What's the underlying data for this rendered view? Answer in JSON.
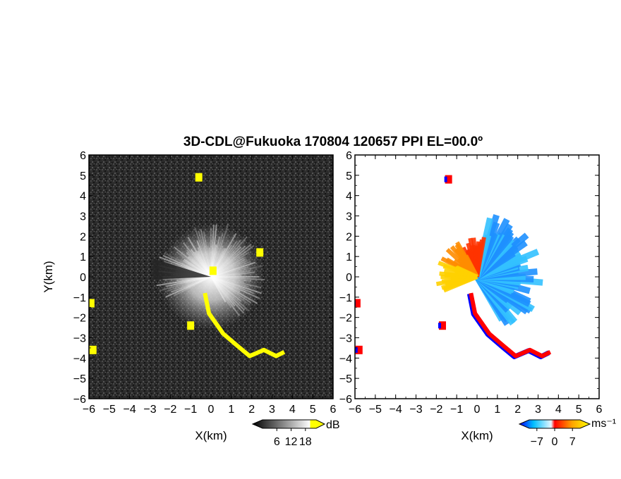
{
  "figure": {
    "title": "3D-CDL@Fukuoka 170804 120657 PPI EL=00.0º"
  },
  "chart_data": [
    {
      "type": "heatmap",
      "name": "reflectivity-ppi",
      "xlabel": "X(km)",
      "ylabel": "Y(km)",
      "xlim": [
        -6,
        6
      ],
      "ylim": [
        -6,
        6
      ],
      "x_ticks": [
        -6,
        -5,
        -4,
        -3,
        -2,
        -1,
        0,
        1,
        2,
        3,
        4,
        5,
        6
      ],
      "y_ticks": [
        -6,
        -5,
        -4,
        -3,
        -2,
        -1,
        0,
        1,
        2,
        3,
        4,
        5,
        6
      ],
      "colorbar": {
        "unit": "dB",
        "ticks": [
          6,
          12,
          18
        ],
        "colors": [
          "#000000",
          "#ffffff",
          "#ffff00"
        ]
      },
      "features": {
        "bright_echo_center": [
          0,
          0
        ],
        "bright_echo_radius_km": 2.6,
        "clutter_line": [
          [
            -0.3,
            -0.8
          ],
          [
            -0.1,
            -1.8
          ],
          [
            0.6,
            -2.8
          ],
          [
            1.3,
            -3.4
          ],
          [
            1.9,
            -3.9
          ],
          [
            2.6,
            -3.6
          ],
          [
            3.2,
            -3.9
          ],
          [
            3.6,
            -3.7
          ]
        ],
        "clutter_patches": [
          [
            -5.8,
            -3.6
          ],
          [
            -5.9,
            -1.3
          ],
          [
            -1.0,
            -2.4
          ],
          [
            0.1,
            0.3
          ],
          [
            2.4,
            1.2
          ],
          [
            -0.6,
            4.9
          ]
        ]
      }
    },
    {
      "type": "heatmap",
      "name": "doppler-velocity-ppi",
      "xlabel": "X(km)",
      "ylabel": "",
      "xlim": [
        -6,
        6
      ],
      "ylim": [
        -6,
        6
      ],
      "x_ticks": [
        -6,
        -5,
        -4,
        -3,
        -2,
        -1,
        0,
        1,
        2,
        3,
        4,
        5,
        6
      ],
      "y_ticks": [
        -6,
        -5,
        -4,
        -3,
        -2,
        -1,
        0,
        1,
        2,
        3,
        4,
        5,
        6
      ],
      "colorbar": {
        "unit": "ms⁻¹",
        "ticks": [
          -7,
          0,
          7
        ],
        "colors": [
          "#0000ff",
          "#00bfff",
          "#ff0000",
          "#ffa500",
          "#ffff00"
        ]
      },
      "features": {
        "receding_sector_deg": [
          80,
          205
        ],
        "approaching_sector_deg": [
          -60,
          80
        ],
        "clutter_line": [
          [
            -0.3,
            -0.8
          ],
          [
            -0.1,
            -1.8
          ],
          [
            0.6,
            -2.8
          ],
          [
            1.3,
            -3.4
          ],
          [
            1.9,
            -3.9
          ],
          [
            2.6,
            -3.6
          ],
          [
            3.2,
            -3.9
          ],
          [
            3.6,
            -3.7
          ]
        ],
        "clutter_patches": [
          [
            -5.8,
            -3.6
          ],
          [
            -5.9,
            -1.3
          ],
          [
            -1.7,
            -2.4
          ],
          [
            -1.4,
            4.8
          ]
        ]
      }
    }
  ]
}
